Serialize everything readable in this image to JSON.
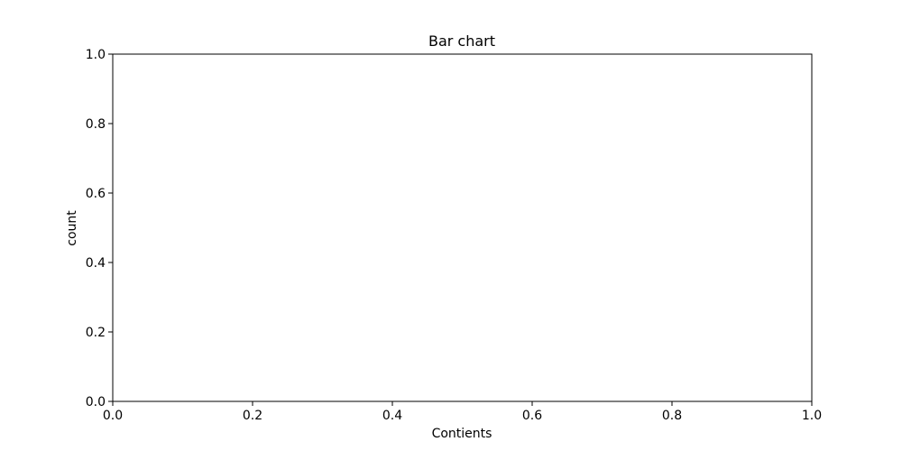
{
  "chart_data": {
    "type": "bar",
    "title": "Bar chart",
    "xlabel": "Contients",
    "ylabel": "count",
    "categories": [],
    "values": [],
    "xlim": [
      0,
      1
    ],
    "ylim": [
      0,
      1
    ],
    "x_ticks": [
      "0.0",
      "0.2",
      "0.4",
      "0.6",
      "0.8",
      "1.0"
    ],
    "y_ticks": [
      "0.0",
      "0.2",
      "0.4",
      "0.6",
      "0.8",
      "1.0"
    ],
    "grid": false,
    "legend": "none",
    "colors": {
      "axis": "#000000",
      "background": "#ffffff"
    }
  }
}
